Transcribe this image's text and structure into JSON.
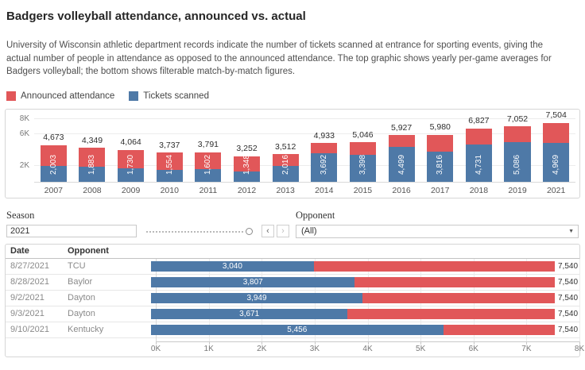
{
  "header": {
    "title": "Badgers volleyball attendance, announced vs. actual",
    "description": "University of Wisconsin athletic department records indicate the number of tickets scanned at entrance for sporting events, giving the actual number of people in attendance as opposed to the announced attendance. The top graphic shows yearly per-game averages for Badgers volleyball; the bottom shows filterable match-by-match figures."
  },
  "legend": {
    "items": [
      {
        "label": "Announced attendance",
        "color": "#E15759"
      },
      {
        "label": "Tickets scanned",
        "color": "#4E79A7"
      }
    ]
  },
  "filters": {
    "season": {
      "label": "Season",
      "value": "2021",
      "prev_icon": "‹",
      "next_icon": "›"
    },
    "opponent": {
      "label": "Opponent",
      "value": "(All)",
      "caret_icon": "▼"
    }
  },
  "match_table": {
    "columns": {
      "date": "Date",
      "opponent": "Opponent"
    }
  },
  "chart_data": [
    {
      "type": "bar",
      "categories": [
        "2007",
        "2008",
        "2009",
        "2010",
        "2011",
        "2012",
        "2013",
        "2014",
        "2015",
        "2016",
        "2017",
        "2018",
        "2019",
        "2021"
      ],
      "series": [
        {
          "name": "Announced attendance",
          "color": "#E15759",
          "values": [
            4673,
            4349,
            4064,
            3737,
            3791,
            3252,
            3512,
            4933,
            5046,
            5927,
            5980,
            6827,
            7052,
            7504
          ]
        },
        {
          "name": "Tickets scanned",
          "color": "#4E79A7",
          "values": [
            2003,
            1883,
            1730,
            1554,
            1602,
            1348,
            2016,
            3692,
            3398,
            4499,
            3816,
            4731,
            5086,
            4969
          ]
        }
      ],
      "ylim": [
        0,
        8000
      ],
      "yticks": [
        {
          "label": "8K",
          "value": 8000
        },
        {
          "label": "6K",
          "value": 6000
        },
        {
          "label": "2K",
          "value": 2000
        }
      ],
      "grid": true,
      "legend_position": "top-left"
    },
    {
      "type": "bar",
      "orientation": "horizontal",
      "rows": [
        {
          "date": "8/27/2021",
          "opponent": "TCU",
          "scanned": 3040,
          "announced": 7540
        },
        {
          "date": "8/28/2021",
          "opponent": "Baylor",
          "scanned": 3807,
          "announced": 7540
        },
        {
          "date": "9/2/2021",
          "opponent": "Dayton",
          "scanned": 3949,
          "announced": 7540
        },
        {
          "date": "9/3/2021",
          "opponent": "Dayton",
          "scanned": 3671,
          "announced": 7540
        },
        {
          "date": "9/10/2021",
          "opponent": "Kentucky",
          "scanned": 5456,
          "announced": 7540
        }
      ],
      "series_colors": {
        "announced": "#E15759",
        "scanned": "#4E79A7"
      },
      "xlim": [
        0,
        8000
      ],
      "xticks": [
        {
          "label": "0K",
          "value": 0
        },
        {
          "label": "1K",
          "value": 1000
        },
        {
          "label": "2K",
          "value": 2000
        },
        {
          "label": "3K",
          "value": 3000
        },
        {
          "label": "4K",
          "value": 4000
        },
        {
          "label": "5K",
          "value": 5000
        },
        {
          "label": "6K",
          "value": 6000
        },
        {
          "label": "7K",
          "value": 7000
        },
        {
          "label": "8K",
          "value": 8000
        }
      ]
    }
  ]
}
